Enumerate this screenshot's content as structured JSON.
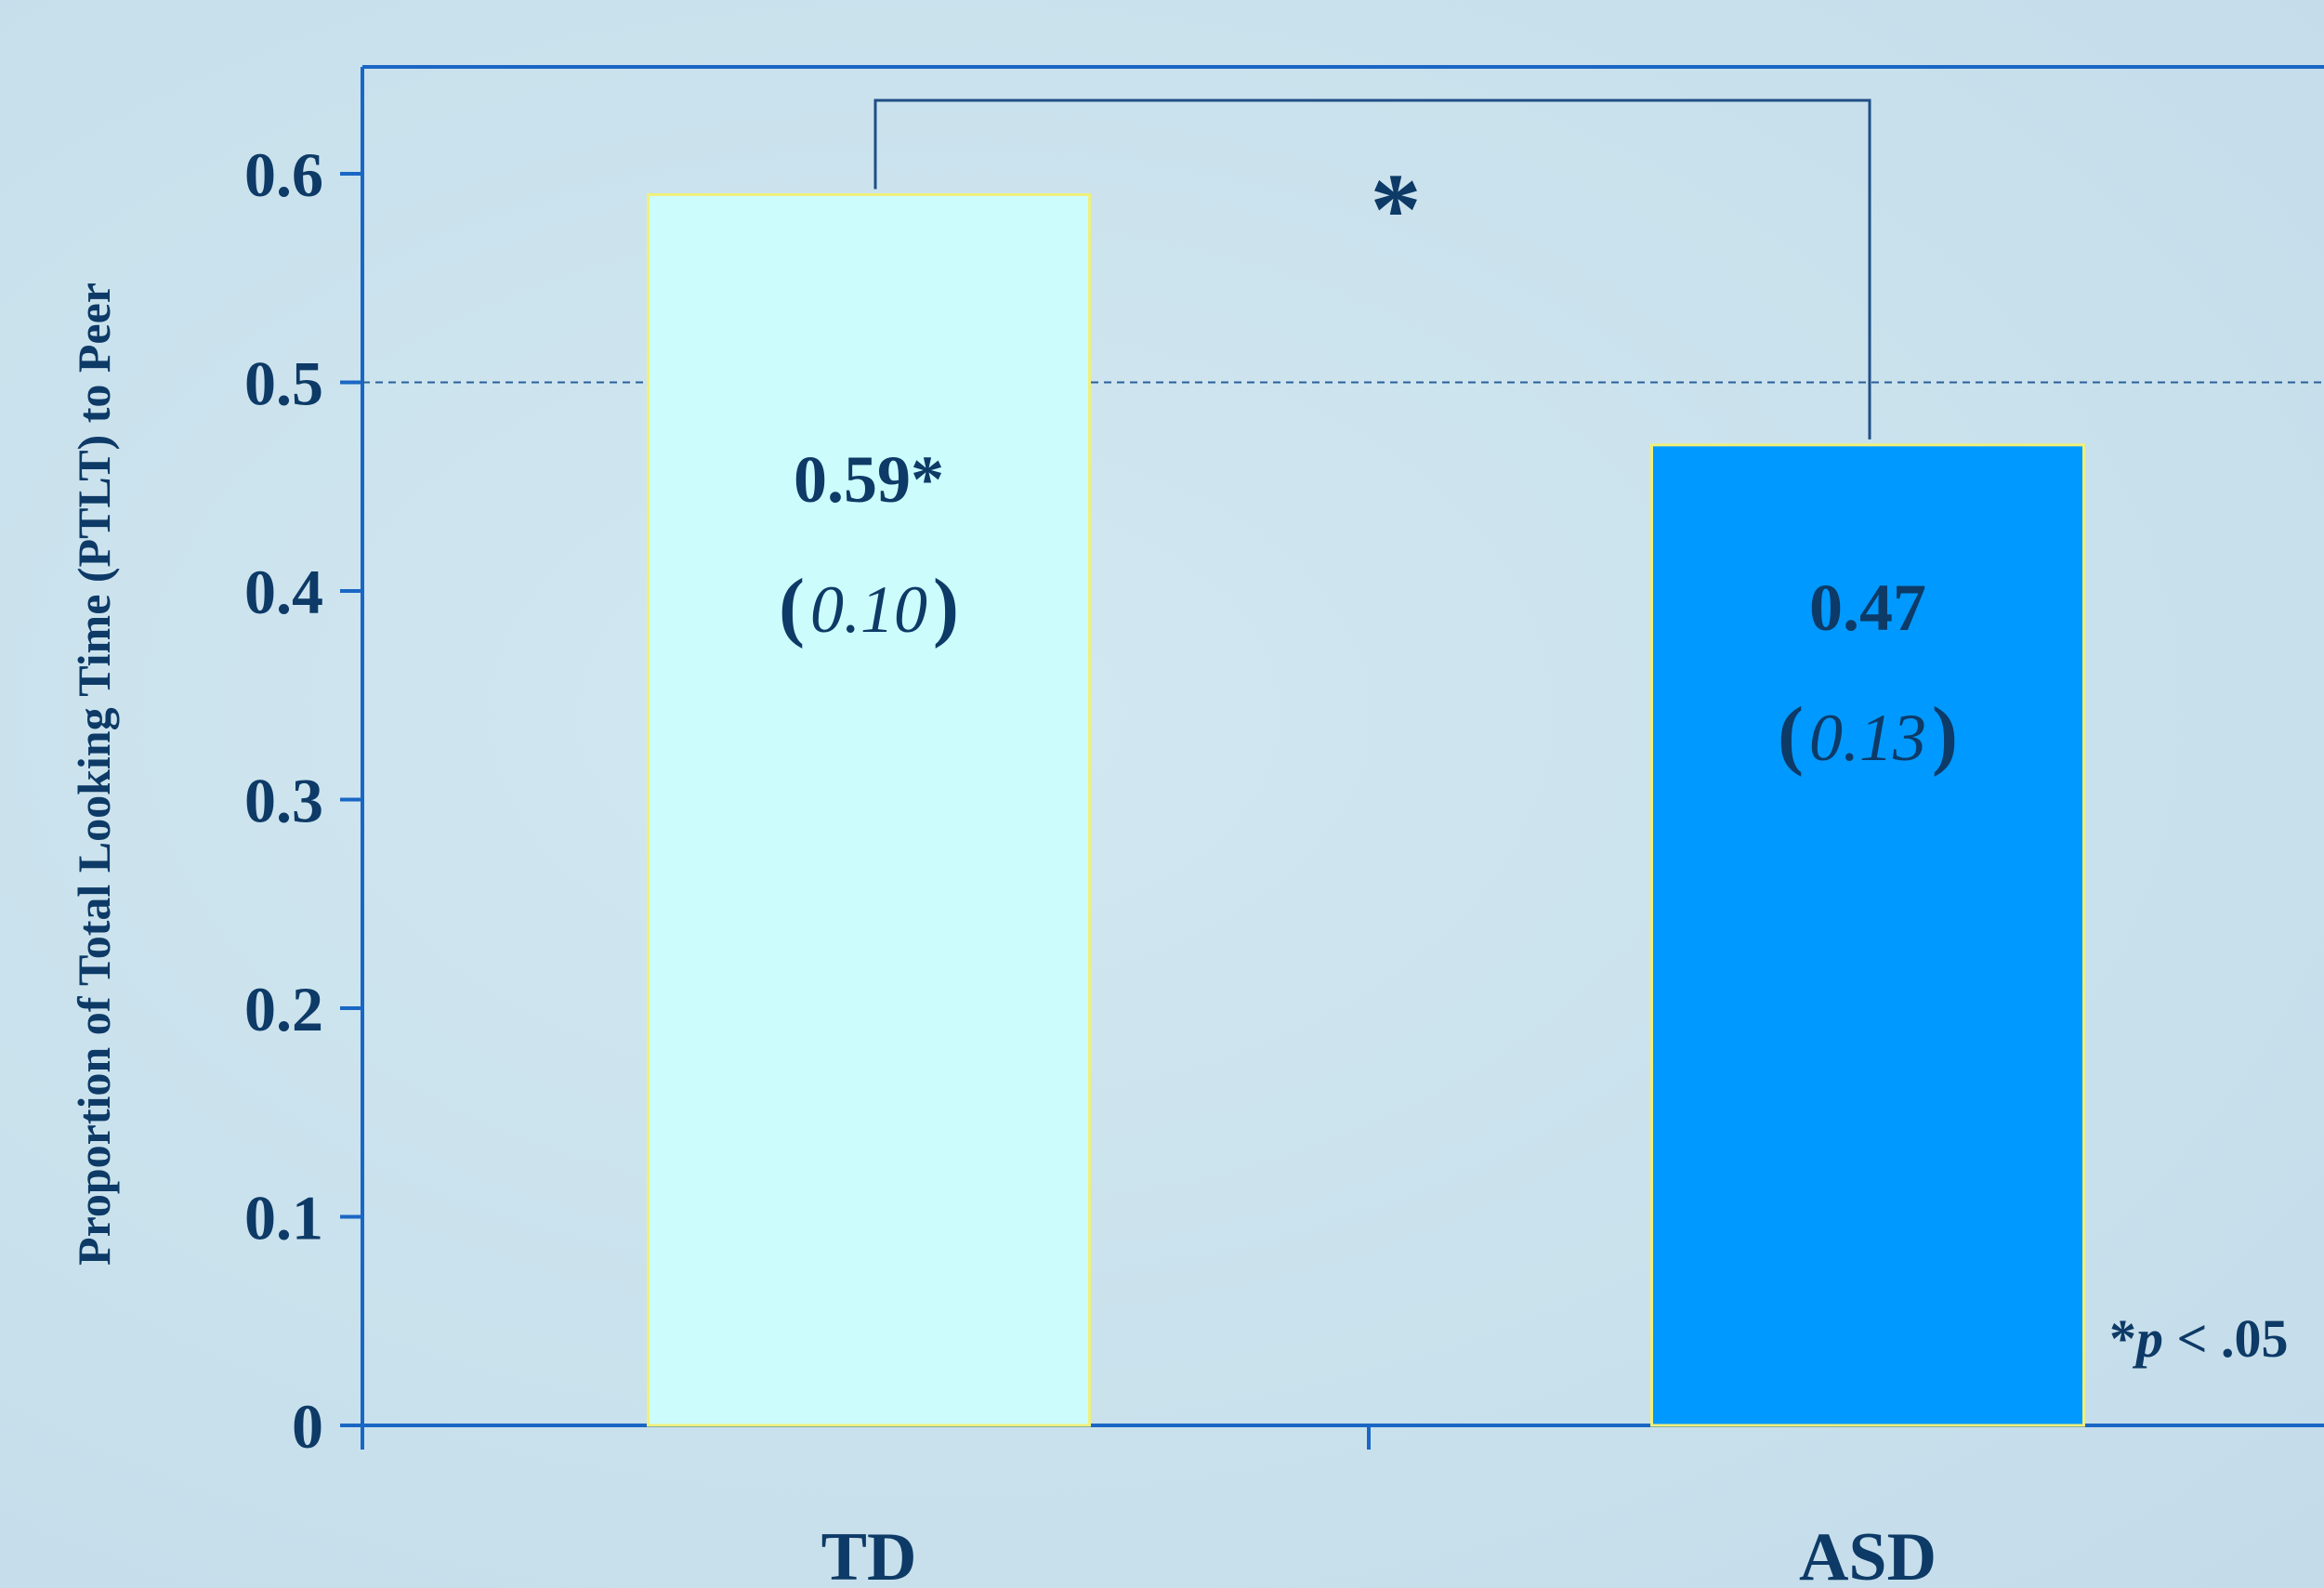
{
  "chart_data": {
    "type": "bar",
    "ylabel": "Proportion of Total Looking Time (PTLT) to Peer",
    "xlabel": "",
    "ylim": [
      0,
      0.65
    ],
    "yticks": [
      "0",
      "0.1",
      "0.2",
      "0.3",
      "0.4",
      "0.5",
      "0.6"
    ],
    "ytick_values": [
      0,
      0.1,
      0.2,
      0.3,
      0.4,
      0.5,
      0.6
    ],
    "categories": [
      "TD",
      "ASD"
    ],
    "values": [
      0.59,
      0.47
    ],
    "bar_labels": [
      "0.59*",
      "0.47"
    ],
    "sd_labels": [
      "0.10",
      "0.13"
    ],
    "bar_colors": [
      "#ccfcfc",
      "#0099ff"
    ],
    "bar_edge_color": "#f0f07a",
    "reference_line": 0.5,
    "grid": false,
    "significance": {
      "marker": "*",
      "between": [
        "TD",
        "ASD"
      ]
    },
    "note": {
      "star": "*",
      "p": "p",
      "rest": " < .05"
    },
    "axis_color": "#1a66c4",
    "text_color": "#0d3a66"
  }
}
